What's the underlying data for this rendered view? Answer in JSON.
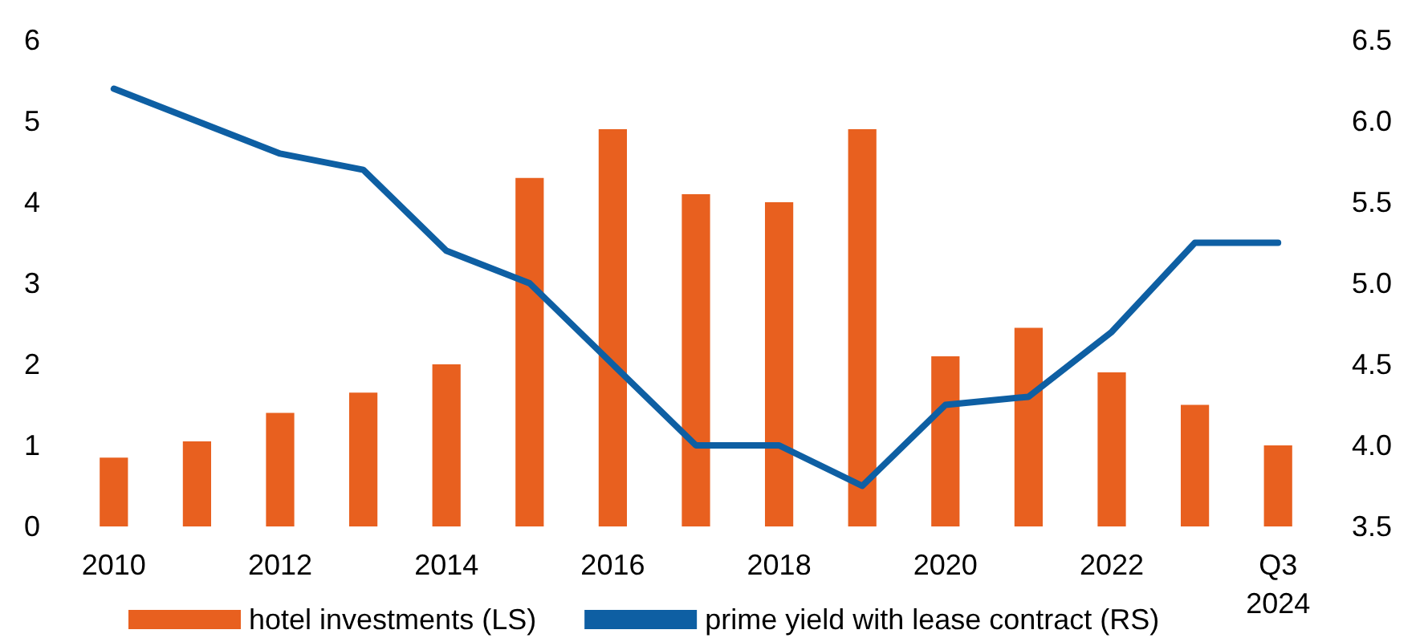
{
  "chart_data": {
    "type": "bar",
    "categories": [
      "2010",
      null,
      "2012",
      null,
      "2014",
      null,
      "2016",
      null,
      "2018",
      null,
      "2020",
      null,
      "2022",
      null,
      "Q3\n2024"
    ],
    "series": [
      {
        "name": "hotel investments (LS)",
        "color": "#e8601f",
        "values": [
          0.85,
          1.05,
          1.4,
          1.65,
          2.0,
          4.3,
          4.9,
          4.1,
          4.0,
          4.9,
          2.1,
          2.45,
          1.9,
          1.5,
          1.0
        ]
      },
      {
        "name": "prime yield with lease contract (RS)",
        "type": "line",
        "axis": "y2",
        "color": "#0e5fa3",
        "values": [
          6.2,
          6.0,
          5.8,
          5.7,
          5.2,
          5.0,
          4.5,
          4.0,
          4.0,
          3.75,
          4.25,
          4.3,
          4.7,
          5.25,
          5.25
        ]
      }
    ],
    "ylim": [
      0,
      6
    ],
    "yticks": [
      0,
      1,
      2,
      3,
      4,
      5,
      6
    ],
    "y2lim": [
      3.5,
      6.5
    ],
    "y2ticks": [
      {
        "value": 3.5,
        "label": "3.5"
      },
      {
        "value": 4,
        "label": "4.0"
      },
      {
        "value": 4.5,
        "label": "4.5"
      },
      {
        "value": 5,
        "label": "5.0"
      },
      {
        "value": 5.5,
        "label": "5.5"
      },
      {
        "value": 6,
        "label": "6.0"
      },
      {
        "value": 6.5,
        "label": "6.5"
      }
    ],
    "grid": false,
    "legend": "bottom",
    "marker": "none",
    "line_style": "solid"
  }
}
